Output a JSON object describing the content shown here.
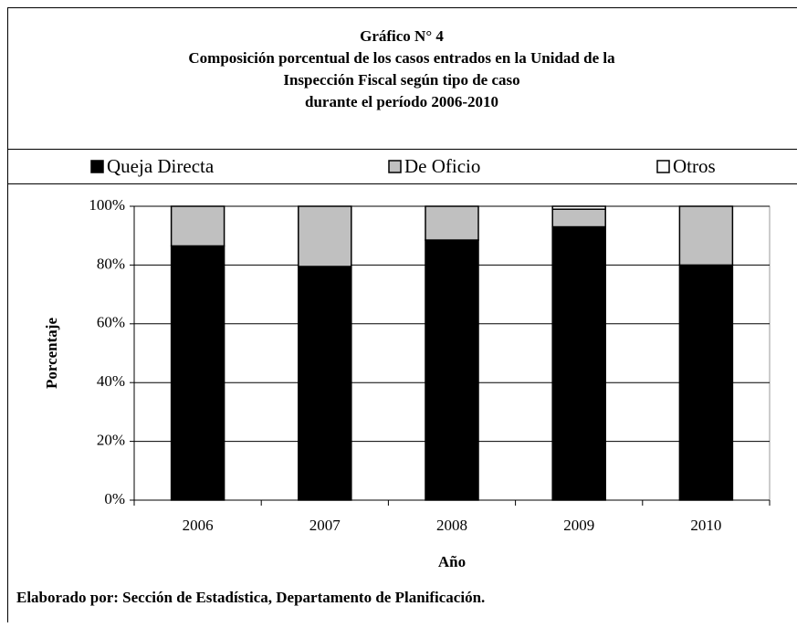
{
  "chart_data": {
    "type": "stacked_bar",
    "title": [
      "Gráfico N° 4",
      "Composición porcentual de los casos entrados en la Unidad de la",
      "Inspección Fiscal según tipo de caso",
      "durante el período 2006-2010"
    ],
    "categories": [
      "2006",
      "2007",
      "2008",
      "2009",
      "2010"
    ],
    "series": [
      {
        "name": "Queja Directa",
        "color": "#000000",
        "values": [
          86.5,
          79.5,
          88.5,
          93,
          80
        ]
      },
      {
        "name": "De Oficio",
        "color": "#c0c0c0",
        "values": [
          13.5,
          20.5,
          11.5,
          6,
          20
        ]
      },
      {
        "name": "Otros",
        "color": "#ffffff",
        "values": [
          0,
          0,
          0,
          1,
          0
        ]
      }
    ],
    "ylim": [
      0,
      100
    ],
    "yticks": [
      {
        "value": 0,
        "label": "0%"
      },
      {
        "value": 20,
        "label": "20%"
      },
      {
        "value": 40,
        "label": "40%"
      },
      {
        "value": 60,
        "label": "60%"
      },
      {
        "value": 80,
        "label": "80%"
      },
      {
        "value": 100,
        "label": "100%"
      }
    ],
    "ylabel": "Porcentaje",
    "xlabel": "Año",
    "legend": "top",
    "grid": true,
    "source": "Elaborado por: Sección de Estadística, Departamento de Planificación."
  }
}
